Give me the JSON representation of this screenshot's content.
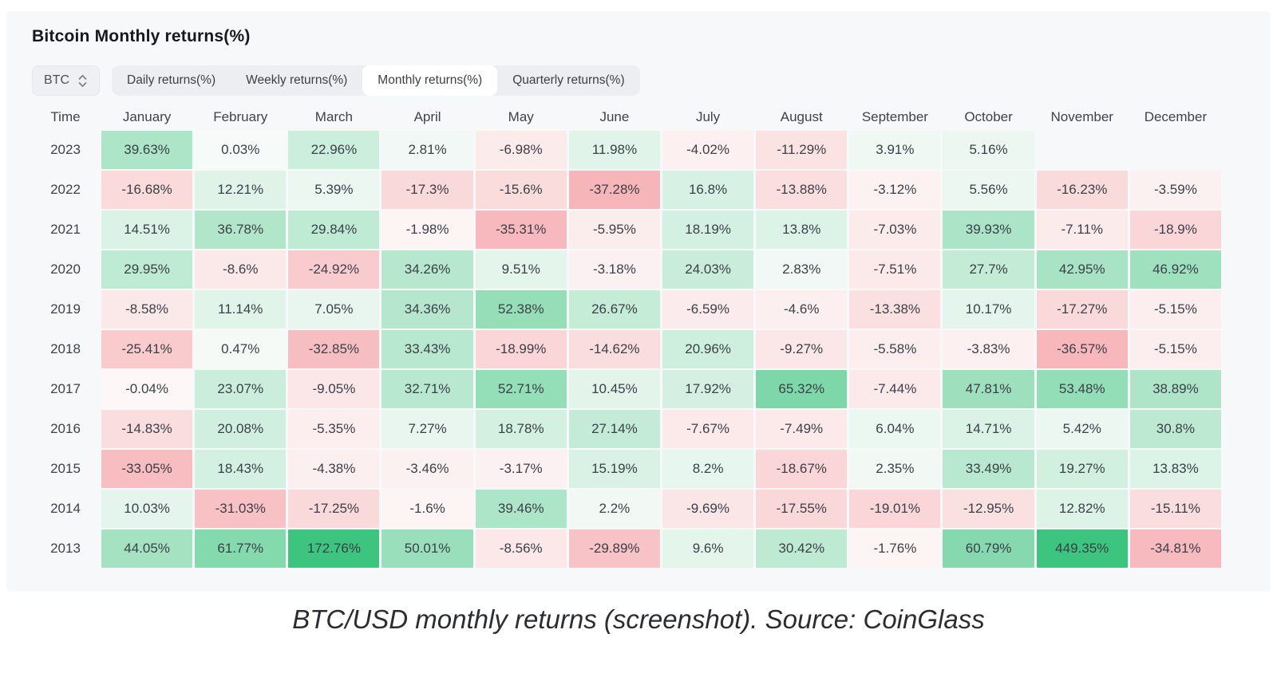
{
  "header": {
    "title": "Bitcoin Monthly returns(%)"
  },
  "controls": {
    "coin_selector": {
      "value": "BTC"
    },
    "tabs": [
      {
        "label": "Daily returns(%)",
        "active": false
      },
      {
        "label": "Weekly returns(%)",
        "active": false
      },
      {
        "label": "Monthly returns(%)",
        "active": true
      },
      {
        "label": "Quarterly returns(%)",
        "active": false
      }
    ]
  },
  "chart_data": {
    "type": "heatmap",
    "title": "Bitcoin Monthly returns(%)",
    "unit": "%",
    "columns": [
      "Time",
      "January",
      "February",
      "March",
      "April",
      "May",
      "June",
      "July",
      "August",
      "September",
      "October",
      "November",
      "December"
    ],
    "rows": [
      {
        "year": "2023",
        "values": [
          39.63,
          0.03,
          22.96,
          2.81,
          -6.98,
          11.98,
          -4.02,
          -11.29,
          3.91,
          5.16,
          null,
          null
        ]
      },
      {
        "year": "2022",
        "values": [
          -16.68,
          12.21,
          5.39,
          -17.3,
          -15.6,
          -37.28,
          16.8,
          -13.88,
          -3.12,
          5.56,
          -16.23,
          -3.59
        ]
      },
      {
        "year": "2021",
        "values": [
          14.51,
          36.78,
          29.84,
          -1.98,
          -35.31,
          -5.95,
          18.19,
          13.8,
          -7.03,
          39.93,
          -7.11,
          -18.9
        ]
      },
      {
        "year": "2020",
        "values": [
          29.95,
          -8.6,
          -24.92,
          34.26,
          9.51,
          -3.18,
          24.03,
          2.83,
          -7.51,
          27.7,
          42.95,
          46.92
        ]
      },
      {
        "year": "2019",
        "values": [
          -8.58,
          11.14,
          7.05,
          34.36,
          52.38,
          26.67,
          -6.59,
          -4.6,
          -13.38,
          10.17,
          -17.27,
          -5.15
        ]
      },
      {
        "year": "2018",
        "values": [
          -25.41,
          0.47,
          -32.85,
          33.43,
          -18.99,
          -14.62,
          20.96,
          -9.27,
          -5.58,
          -3.83,
          -36.57,
          -5.15
        ]
      },
      {
        "year": "2017",
        "values": [
          -0.04,
          23.07,
          -9.05,
          32.71,
          52.71,
          10.45,
          17.92,
          65.32,
          -7.44,
          47.81,
          53.48,
          38.89
        ]
      },
      {
        "year": "2016",
        "values": [
          -14.83,
          20.08,
          -5.35,
          7.27,
          18.78,
          27.14,
          -7.67,
          -7.49,
          6.04,
          14.71,
          5.42,
          30.8
        ]
      },
      {
        "year": "2015",
        "values": [
          -33.05,
          18.43,
          -4.38,
          -3.46,
          -3.17,
          15.19,
          8.2,
          -18.67,
          2.35,
          33.49,
          19.27,
          13.83
        ]
      },
      {
        "year": "2014",
        "values": [
          10.03,
          -31.03,
          -17.25,
          -1.6,
          39.46,
          2.2,
          -9.69,
          -17.55,
          -19.01,
          -12.95,
          12.82,
          -15.11
        ]
      },
      {
        "year": "2013",
        "values": [
          44.05,
          61.77,
          172.76,
          50.01,
          -8.56,
          -29.89,
          9.6,
          30.42,
          -1.76,
          60.79,
          449.35,
          -34.81
        ]
      }
    ],
    "color_scale": {
      "positive_max": "#3dc47e",
      "positive_min": "#f6faf8",
      "negative_max": "#f6b1b5",
      "negative_min": "#fdf7f7",
      "positive_cap": 100,
      "negative_cap": -40
    }
  },
  "caption": "BTC/USD monthly returns (screenshot). Source: CoinGlass"
}
